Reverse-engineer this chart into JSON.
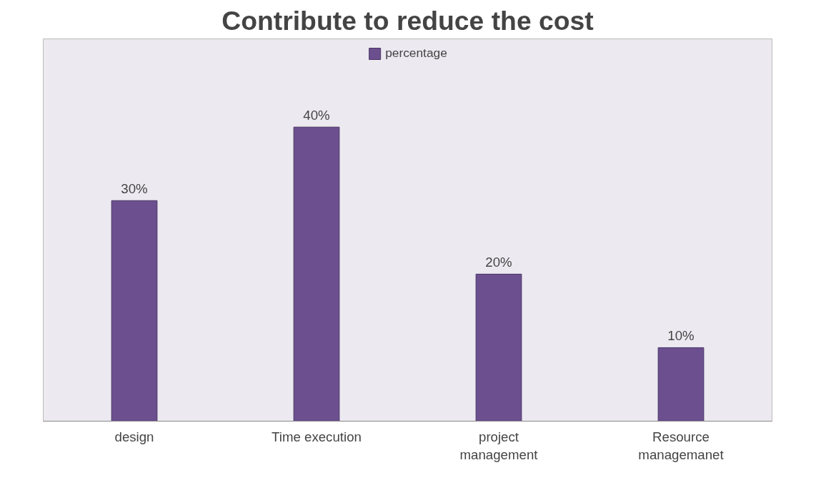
{
  "chart_data": {
    "type": "bar",
    "title": "Contribute to reduce the cost",
    "categories": [
      "design",
      "Time execution",
      "project management",
      "Resource managemanet"
    ],
    "series": [
      {
        "name": "percentage",
        "color": "#6b4f8e",
        "values": [
          30,
          40,
          20,
          10
        ],
        "value_labels": [
          "30%",
          "40%",
          "20%",
          "10%"
        ]
      }
    ],
    "legend": "top",
    "grid": false
  }
}
